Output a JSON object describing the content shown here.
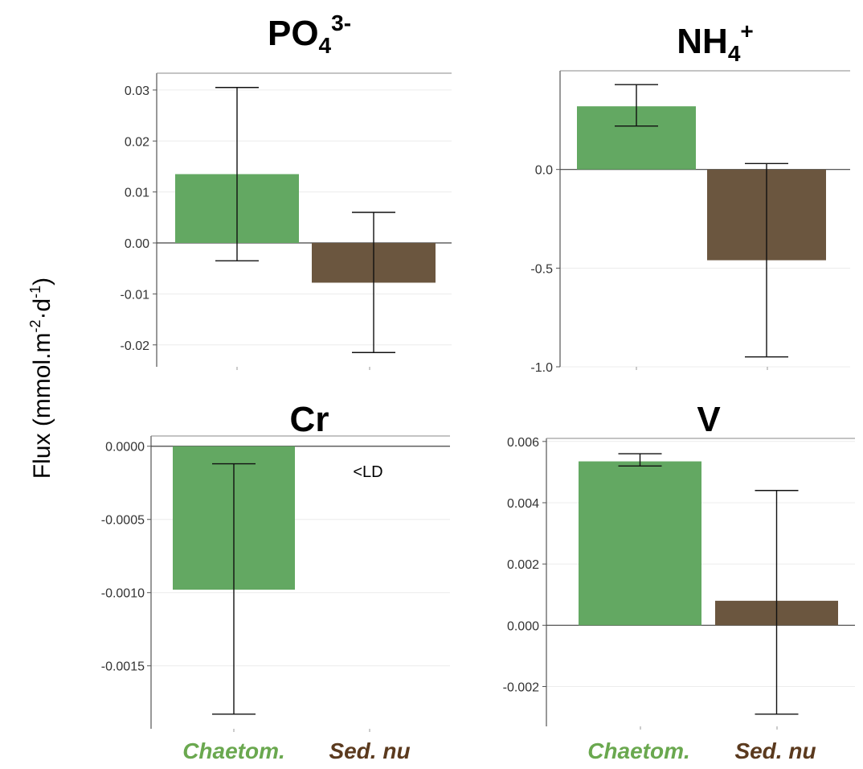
{
  "y_axis_label": {
    "prefix": "Flux (mmol.m",
    "sup1": "-2",
    "mid": "·d",
    "sup2": "-1",
    "suffix": ")"
  },
  "category_labels": [
    {
      "text": "Chaetom.",
      "color": "#6aa84f"
    },
    {
      "text": "Sed. nu",
      "color": "#5b3a1e"
    },
    {
      "text": "Chaetom.",
      "color": "#6aa84f"
    },
    {
      "text": "Sed. nu",
      "color": "#5b3a1e"
    }
  ],
  "colors": {
    "chaetom": "#63a862",
    "sed_nu": "#6b563f",
    "axis": "#555555",
    "grid": "#ececec"
  },
  "chart_data": [
    {
      "type": "bar",
      "title": {
        "base": "PO",
        "sub": "4",
        "sup": "3-"
      },
      "categories": [
        "Chaetom.",
        "Sed. nu"
      ],
      "values": [
        0.0135,
        -0.0078
      ],
      "errors": [
        {
          "low": -0.0035,
          "high": 0.0305
        },
        {
          "low": -0.0215,
          "high": 0.006
        }
      ],
      "ylim": [
        -0.0243,
        0.0333
      ],
      "yticks": [
        0.03,
        0.02,
        0.01,
        0.0,
        -0.01,
        -0.02
      ],
      "ytick_labels": [
        "0.03",
        "0.02",
        "0.01",
        "0.00",
        "-0.01",
        "-0.02"
      ],
      "note": ""
    },
    {
      "type": "bar",
      "title": {
        "base": "NH",
        "sub": "4",
        "sup": "+"
      },
      "categories": [
        "Chaetom.",
        "Sed. nu"
      ],
      "values": [
        0.32,
        -0.46
      ],
      "errors": [
        {
          "low": 0.22,
          "high": 0.43
        },
        {
          "low": -0.95,
          "high": 0.03
        }
      ],
      "ylim": [
        -1.0,
        0.5
      ],
      "yticks": [
        0.0,
        -0.5,
        -1.0
      ],
      "ytick_labels": [
        "0.0",
        "-0.5",
        "-1.0"
      ],
      "note": ""
    },
    {
      "type": "bar",
      "title": {
        "base": "Cr",
        "sub": "",
        "sup": ""
      },
      "categories": [
        "Chaetom.",
        "Sed. nu"
      ],
      "values": [
        -0.00098,
        null
      ],
      "errors": [
        {
          "low": -0.00183,
          "high": -0.00012
        },
        null
      ],
      "ylim": [
        -0.00193,
        7e-05
      ],
      "yticks": [
        0.0,
        -0.0005,
        -0.001,
        -0.0015
      ],
      "ytick_labels": [
        "0.0000",
        "-0.0005",
        "-0.0010",
        "-0.0015"
      ],
      "note": "<LD"
    },
    {
      "type": "bar",
      "title": {
        "base": "V",
        "sub": "",
        "sup": ""
      },
      "categories": [
        "Chaetom.",
        "Sed. nu"
      ],
      "values": [
        0.00535,
        0.0008
      ],
      "errors": [
        {
          "low": 0.0052,
          "high": 0.0056
        },
        {
          "low": -0.0029,
          "high": 0.0044
        }
      ],
      "ylim": [
        -0.0033,
        0.0061
      ],
      "yticks": [
        0.006,
        0.004,
        0.002,
        0.0,
        -0.002
      ],
      "ytick_labels": [
        "0.006",
        "0.004",
        "0.002",
        "0.000",
        "-0.002"
      ],
      "note": ""
    }
  ]
}
